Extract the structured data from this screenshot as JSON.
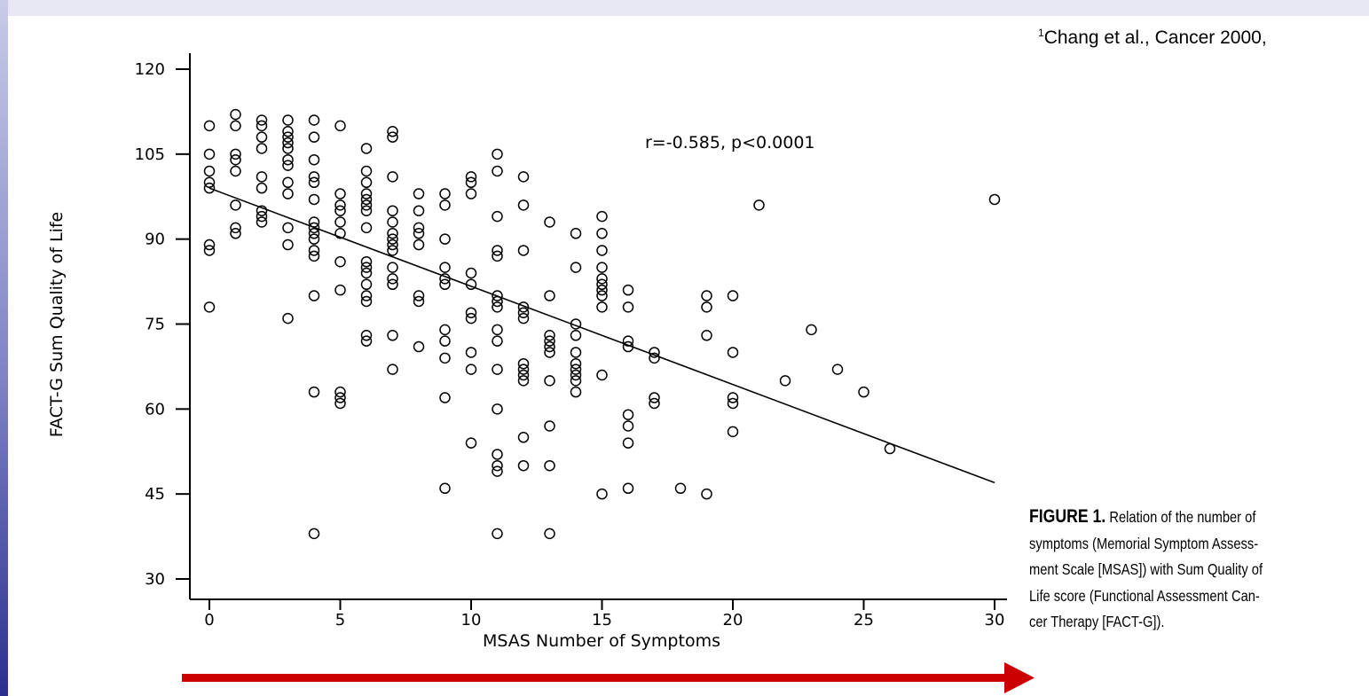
{
  "citation": {
    "sup": "1",
    "text": "Chang et al., Cancer 2000,"
  },
  "caption": {
    "label": "FIGURE 1.",
    "lines": [
      " Relation of the number of",
      "symptoms (Memorial Symptom Assess-",
      "ment Scale [MSAS]) with Sum Quality of",
      "Life score (Functional Assessment Can-",
      "cer Therapy [FACT-G])."
    ]
  },
  "colors": {
    "arrow": "#cc0000",
    "points": "#000000",
    "left_band": "#3a3f9a"
  },
  "chart_data": {
    "type": "scatter",
    "title": "",
    "xlabel": "MSAS Number of Symptoms",
    "ylabel": "FACT-G Sum Quality of Life",
    "xlim": [
      0,
      30
    ],
    "ylim": [
      30,
      120
    ],
    "x_ticks": [
      0,
      5,
      10,
      15,
      20,
      25,
      30
    ],
    "y_ticks": [
      30,
      45,
      60,
      75,
      90,
      105,
      120
    ],
    "annotation": "r=-0.585, p<0.0001",
    "grid": false,
    "regression_line": {
      "x": [
        0,
        30
      ],
      "y": [
        99,
        47
      ]
    },
    "points": [
      {
        "x": 0,
        "y": 110
      },
      {
        "x": 0,
        "y": 105
      },
      {
        "x": 0,
        "y": 102
      },
      {
        "x": 0,
        "y": 100
      },
      {
        "x": 0,
        "y": 99
      },
      {
        "x": 0,
        "y": 89
      },
      {
        "x": 0,
        "y": 88
      },
      {
        "x": 0,
        "y": 78
      },
      {
        "x": 1,
        "y": 112
      },
      {
        "x": 1,
        "y": 110
      },
      {
        "x": 1,
        "y": 105
      },
      {
        "x": 1,
        "y": 104
      },
      {
        "x": 1,
        "y": 102
      },
      {
        "x": 1,
        "y": 96
      },
      {
        "x": 1,
        "y": 92
      },
      {
        "x": 1,
        "y": 91
      },
      {
        "x": 2,
        "y": 111
      },
      {
        "x": 2,
        "y": 110
      },
      {
        "x": 2,
        "y": 108
      },
      {
        "x": 2,
        "y": 106
      },
      {
        "x": 2,
        "y": 101
      },
      {
        "x": 2,
        "y": 99
      },
      {
        "x": 2,
        "y": 95
      },
      {
        "x": 2,
        "y": 94
      },
      {
        "x": 2,
        "y": 93
      },
      {
        "x": 3,
        "y": 111
      },
      {
        "x": 3,
        "y": 109
      },
      {
        "x": 3,
        "y": 108
      },
      {
        "x": 3,
        "y": 107
      },
      {
        "x": 3,
        "y": 106
      },
      {
        "x": 3,
        "y": 104
      },
      {
        "x": 3,
        "y": 103
      },
      {
        "x": 3,
        "y": 100
      },
      {
        "x": 3,
        "y": 98
      },
      {
        "x": 3,
        "y": 92
      },
      {
        "x": 3,
        "y": 89
      },
      {
        "x": 3,
        "y": 76
      },
      {
        "x": 4,
        "y": 111
      },
      {
        "x": 4,
        "y": 108
      },
      {
        "x": 4,
        "y": 104
      },
      {
        "x": 4,
        "y": 101
      },
      {
        "x": 4,
        "y": 100
      },
      {
        "x": 4,
        "y": 97
      },
      {
        "x": 4,
        "y": 93
      },
      {
        "x": 4,
        "y": 92
      },
      {
        "x": 4,
        "y": 91
      },
      {
        "x": 4,
        "y": 90
      },
      {
        "x": 4,
        "y": 88
      },
      {
        "x": 4,
        "y": 87
      },
      {
        "x": 4,
        "y": 80
      },
      {
        "x": 4,
        "y": 63
      },
      {
        "x": 4,
        "y": 38
      },
      {
        "x": 5,
        "y": 110
      },
      {
        "x": 5,
        "y": 98
      },
      {
        "x": 5,
        "y": 96
      },
      {
        "x": 5,
        "y": 95
      },
      {
        "x": 5,
        "y": 93
      },
      {
        "x": 5,
        "y": 91
      },
      {
        "x": 5,
        "y": 86
      },
      {
        "x": 5,
        "y": 81
      },
      {
        "x": 5,
        "y": 63
      },
      {
        "x": 5,
        "y": 62
      },
      {
        "x": 5,
        "y": 61
      },
      {
        "x": 6,
        "y": 106
      },
      {
        "x": 6,
        "y": 102
      },
      {
        "x": 6,
        "y": 100
      },
      {
        "x": 6,
        "y": 98
      },
      {
        "x": 6,
        "y": 97
      },
      {
        "x": 6,
        "y": 96
      },
      {
        "x": 6,
        "y": 95
      },
      {
        "x": 6,
        "y": 92
      },
      {
        "x": 6,
        "y": 86
      },
      {
        "x": 6,
        "y": 85
      },
      {
        "x": 6,
        "y": 84
      },
      {
        "x": 6,
        "y": 82
      },
      {
        "x": 6,
        "y": 80
      },
      {
        "x": 6,
        "y": 79
      },
      {
        "x": 6,
        "y": 73
      },
      {
        "x": 6,
        "y": 72
      },
      {
        "x": 7,
        "y": 109
      },
      {
        "x": 7,
        "y": 108
      },
      {
        "x": 7,
        "y": 101
      },
      {
        "x": 7,
        "y": 95
      },
      {
        "x": 7,
        "y": 93
      },
      {
        "x": 7,
        "y": 91
      },
      {
        "x": 7,
        "y": 90
      },
      {
        "x": 7,
        "y": 89
      },
      {
        "x": 7,
        "y": 88
      },
      {
        "x": 7,
        "y": 85
      },
      {
        "x": 7,
        "y": 83
      },
      {
        "x": 7,
        "y": 82
      },
      {
        "x": 7,
        "y": 73
      },
      {
        "x": 7,
        "y": 67
      },
      {
        "x": 8,
        "y": 98
      },
      {
        "x": 8,
        "y": 95
      },
      {
        "x": 8,
        "y": 92
      },
      {
        "x": 8,
        "y": 91
      },
      {
        "x": 8,
        "y": 89
      },
      {
        "x": 8,
        "y": 80
      },
      {
        "x": 8,
        "y": 79
      },
      {
        "x": 8,
        "y": 71
      },
      {
        "x": 9,
        "y": 98
      },
      {
        "x": 9,
        "y": 96
      },
      {
        "x": 9,
        "y": 90
      },
      {
        "x": 9,
        "y": 85
      },
      {
        "x": 9,
        "y": 83
      },
      {
        "x": 9,
        "y": 82
      },
      {
        "x": 9,
        "y": 74
      },
      {
        "x": 9,
        "y": 72
      },
      {
        "x": 9,
        "y": 69
      },
      {
        "x": 9,
        "y": 62
      },
      {
        "x": 9,
        "y": 46
      },
      {
        "x": 10,
        "y": 101
      },
      {
        "x": 10,
        "y": 100
      },
      {
        "x": 10,
        "y": 98
      },
      {
        "x": 10,
        "y": 84
      },
      {
        "x": 10,
        "y": 82
      },
      {
        "x": 10,
        "y": 77
      },
      {
        "x": 10,
        "y": 76
      },
      {
        "x": 10,
        "y": 70
      },
      {
        "x": 10,
        "y": 67
      },
      {
        "x": 10,
        "y": 54
      },
      {
        "x": 11,
        "y": 105
      },
      {
        "x": 11,
        "y": 102
      },
      {
        "x": 11,
        "y": 94
      },
      {
        "x": 11,
        "y": 88
      },
      {
        "x": 11,
        "y": 87
      },
      {
        "x": 11,
        "y": 80
      },
      {
        "x": 11,
        "y": 79
      },
      {
        "x": 11,
        "y": 78
      },
      {
        "x": 11,
        "y": 74
      },
      {
        "x": 11,
        "y": 72
      },
      {
        "x": 11,
        "y": 67
      },
      {
        "x": 11,
        "y": 60
      },
      {
        "x": 11,
        "y": 52
      },
      {
        "x": 11,
        "y": 50
      },
      {
        "x": 11,
        "y": 49
      },
      {
        "x": 11,
        "y": 38
      },
      {
        "x": 12,
        "y": 101
      },
      {
        "x": 12,
        "y": 96
      },
      {
        "x": 12,
        "y": 88
      },
      {
        "x": 12,
        "y": 78
      },
      {
        "x": 12,
        "y": 77
      },
      {
        "x": 12,
        "y": 76
      },
      {
        "x": 12,
        "y": 68
      },
      {
        "x": 12,
        "y": 67
      },
      {
        "x": 12,
        "y": 66
      },
      {
        "x": 12,
        "y": 65
      },
      {
        "x": 12,
        "y": 55
      },
      {
        "x": 12,
        "y": 50
      },
      {
        "x": 13,
        "y": 93
      },
      {
        "x": 13,
        "y": 80
      },
      {
        "x": 13,
        "y": 73
      },
      {
        "x": 13,
        "y": 72
      },
      {
        "x": 13,
        "y": 71
      },
      {
        "x": 13,
        "y": 70
      },
      {
        "x": 13,
        "y": 65
      },
      {
        "x": 13,
        "y": 57
      },
      {
        "x": 13,
        "y": 50
      },
      {
        "x": 13,
        "y": 38
      },
      {
        "x": 14,
        "y": 91
      },
      {
        "x": 14,
        "y": 85
      },
      {
        "x": 14,
        "y": 75
      },
      {
        "x": 14,
        "y": 73
      },
      {
        "x": 14,
        "y": 70
      },
      {
        "x": 14,
        "y": 68
      },
      {
        "x": 14,
        "y": 67
      },
      {
        "x": 14,
        "y": 66
      },
      {
        "x": 14,
        "y": 65
      },
      {
        "x": 14,
        "y": 63
      },
      {
        "x": 15,
        "y": 94
      },
      {
        "x": 15,
        "y": 91
      },
      {
        "x": 15,
        "y": 88
      },
      {
        "x": 15,
        "y": 85
      },
      {
        "x": 15,
        "y": 83
      },
      {
        "x": 15,
        "y": 82
      },
      {
        "x": 15,
        "y": 81
      },
      {
        "x": 15,
        "y": 80
      },
      {
        "x": 15,
        "y": 78
      },
      {
        "x": 15,
        "y": 66
      },
      {
        "x": 15,
        "y": 45
      },
      {
        "x": 16,
        "y": 81
      },
      {
        "x": 16,
        "y": 78
      },
      {
        "x": 16,
        "y": 72
      },
      {
        "x": 16,
        "y": 71
      },
      {
        "x": 16,
        "y": 59
      },
      {
        "x": 16,
        "y": 57
      },
      {
        "x": 16,
        "y": 54
      },
      {
        "x": 16,
        "y": 46
      },
      {
        "x": 17,
        "y": 70
      },
      {
        "x": 17,
        "y": 69
      },
      {
        "x": 17,
        "y": 62
      },
      {
        "x": 17,
        "y": 61
      },
      {
        "x": 18,
        "y": 46
      },
      {
        "x": 19,
        "y": 80
      },
      {
        "x": 19,
        "y": 78
      },
      {
        "x": 19,
        "y": 73
      },
      {
        "x": 19,
        "y": 45
      },
      {
        "x": 20,
        "y": 80
      },
      {
        "x": 20,
        "y": 70
      },
      {
        "x": 20,
        "y": 62
      },
      {
        "x": 20,
        "y": 61
      },
      {
        "x": 20,
        "y": 56
      },
      {
        "x": 21,
        "y": 96
      },
      {
        "x": 22,
        "y": 65
      },
      {
        "x": 23,
        "y": 74
      },
      {
        "x": 24,
        "y": 67
      },
      {
        "x": 25,
        "y": 63
      },
      {
        "x": 26,
        "y": 53
      },
      {
        "x": 30,
        "y": 97
      }
    ]
  }
}
